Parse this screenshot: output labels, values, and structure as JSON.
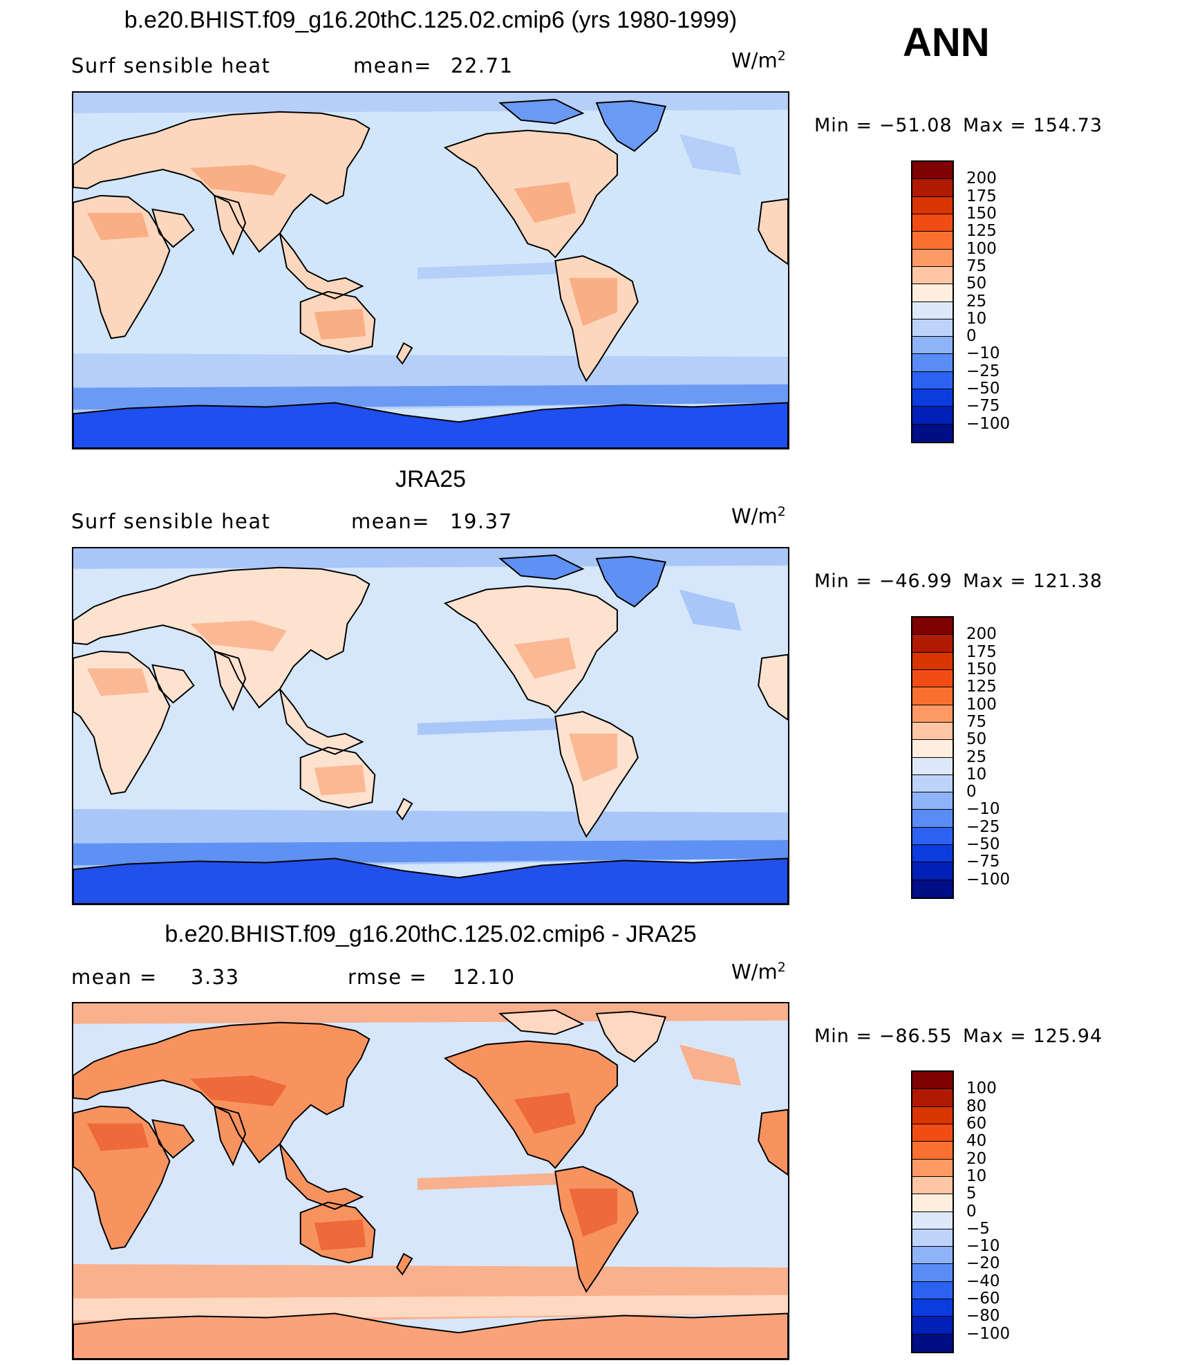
{
  "season": "ANN",
  "units_base": "W/m",
  "units_exp": "2",
  "panels": [
    {
      "title": "b.e20.BHIST.f09_g16.20thC.125.02.cmip6 (yrs 1980-1999)",
      "left_label": "Surf  sensible  heat",
      "stat_label": "mean=",
      "stat_value": "22.71",
      "stat2_label": "",
      "stat2_value": "",
      "min_label": "Min  =  −51.08",
      "max_label": "Max  =  154.73",
      "colorbar": {
        "labels": [
          "200",
          "175",
          "150",
          "125",
          "100",
          "75",
          "50",
          "25",
          "10",
          "0",
          "−10",
          "−25",
          "−50",
          "−75",
          "−100"
        ],
        "colors": [
          "#7f0000",
          "#b01a00",
          "#d93500",
          "#f04c14",
          "#fa7030",
          "#ff9a66",
          "#ffc6a6",
          "#ffeedd",
          "#dde9fa",
          "#bdd3fa",
          "#8fb3f8",
          "#5a8cf6",
          "#2c62f0",
          "#0b3cde",
          "#0020b8",
          "#000e85"
        ]
      },
      "palette": {
        "ocean": "#d2e6fb",
        "land": "#fdd7bd",
        "land_hot": "#f9ae86",
        "cold": "#b6cff9",
        "colder": "#6b9af4",
        "coldest": "#1f4ff0"
      }
    },
    {
      "title": "JRA25",
      "left_label": "Surf  sensible  heat",
      "stat_label": "mean=",
      "stat_value": "19.37",
      "stat2_label": "",
      "stat2_value": "",
      "min_label": "Min  =  −46.99",
      "max_label": "Max  =  121.38",
      "colorbar": {
        "labels": [
          "200",
          "175",
          "150",
          "125",
          "100",
          "75",
          "50",
          "25",
          "10",
          "0",
          "−10",
          "−25",
          "−50",
          "−75",
          "−100"
        ],
        "colors": [
          "#7f0000",
          "#b01a00",
          "#d93500",
          "#f04c14",
          "#fa7030",
          "#ff9a66",
          "#ffc6a6",
          "#ffeedd",
          "#dde9fa",
          "#bdd3fa",
          "#8fb3f8",
          "#5a8cf6",
          "#2c62f0",
          "#0b3cde",
          "#0020b8",
          "#000e85"
        ]
      },
      "palette": {
        "ocean": "#d6e7fb",
        "land": "#fde2cf",
        "land_hot": "#fbb894",
        "cold": "#a9c6f8",
        "colder": "#5f91f4",
        "coldest": "#2250ea"
      }
    },
    {
      "title": "b.e20.BHIST.f09_g16.20thC.125.02.cmip6 - JRA25",
      "left_label": "mean  =",
      "stat_label": "",
      "stat_value": "3.33",
      "stat2_label": "rmse  =",
      "stat2_value": "12.10",
      "min_label": "Min  =  −86.55",
      "max_label": "Max  =  125.94",
      "colorbar": {
        "labels": [
          "100",
          "80",
          "60",
          "40",
          "20",
          "10",
          "5",
          "0",
          "−5",
          "−10",
          "−20",
          "−40",
          "−60",
          "−80",
          "−100"
        ],
        "colors": [
          "#7f0000",
          "#b01a00",
          "#d93500",
          "#f04c14",
          "#fa7030",
          "#ff9a66",
          "#ffc6a6",
          "#ffeedd",
          "#dde9fa",
          "#bdd3fa",
          "#8fb3f8",
          "#5a8cf6",
          "#2c62f0",
          "#0b3cde",
          "#0020b8",
          "#000e85"
        ]
      },
      "palette": {
        "ocean": "#d8e6fb",
        "land": "#f8935f",
        "land_hot": "#ee6a3a",
        "cold": "#f9b08c",
        "colder": "#ffd8c2",
        "coldest": "#fca27a"
      }
    }
  ]
}
